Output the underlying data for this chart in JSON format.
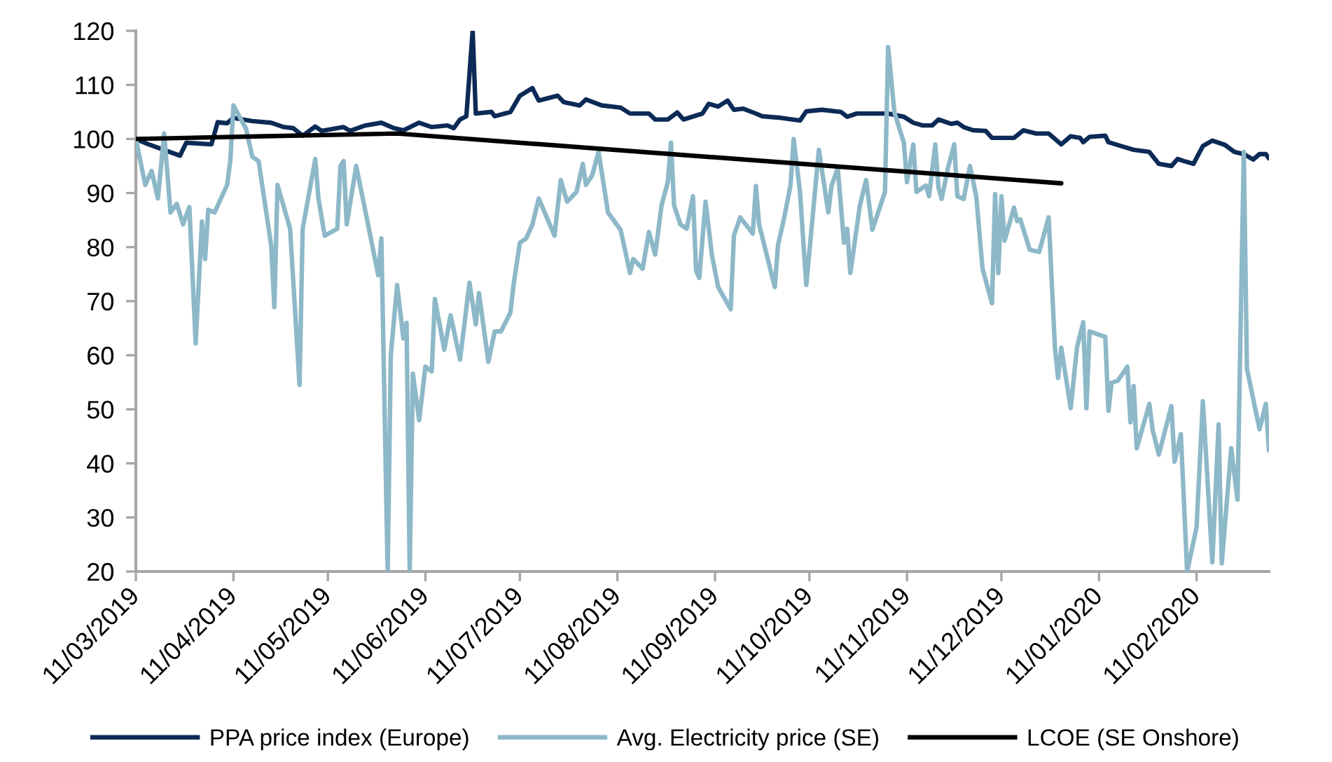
{
  "chart_data": {
    "type": "line",
    "legend": "bottom",
    "marker": "none",
    "xlim": [
      "2019-03-11",
      "2020-03-05"
    ],
    "xticks": [
      {
        "value": "2019-03-11",
        "label": "11/03/2019"
      },
      {
        "value": "2019-04-11",
        "label": "11/04/2019"
      },
      {
        "value": "2019-05-11",
        "label": "11/05/2019"
      },
      {
        "value": "2019-06-11",
        "label": "11/06/2019"
      },
      {
        "value": "2019-07-11",
        "label": "11/07/2019"
      },
      {
        "value": "2019-08-11",
        "label": "11/08/2019"
      },
      {
        "value": "2019-09-11",
        "label": "11/09/2019"
      },
      {
        "value": "2019-10-11",
        "label": "11/10/2019"
      },
      {
        "value": "2019-11-11",
        "label": "11/11/2019"
      },
      {
        "value": "2019-12-11",
        "label": "11/12/2019"
      },
      {
        "value": "2020-01-11",
        "label": "11/01/2020"
      },
      {
        "value": "2020-02-11",
        "label": "11/02/2020"
      }
    ],
    "ylim": [
      20,
      120
    ],
    "yticks": [
      20,
      30,
      40,
      50,
      60,
      70,
      80,
      90,
      100,
      110,
      120
    ],
    "series": [
      {
        "name": "PPA price index (Europe)",
        "color": "#0c2a56",
        "x": [
          "2019-03-11",
          "2019-03-15",
          "2019-03-25",
          "2019-03-27",
          "2019-04-04",
          "2019-04-06",
          "2019-04-09",
          "2019-04-11",
          "2019-04-17",
          "2019-04-23",
          "2019-04-27",
          "2019-04-30",
          "2019-05-03",
          "2019-05-07",
          "2019-05-09",
          "2019-05-16",
          "2019-05-18",
          "2019-05-23",
          "2019-05-28",
          "2019-06-01",
          "2019-06-04",
          "2019-06-09",
          "2019-06-13",
          "2019-06-18",
          "2019-06-20",
          "2019-06-22",
          "2019-06-24",
          "2019-06-26",
          "2019-06-27",
          "2019-07-02",
          "2019-07-03",
          "2019-07-08",
          "2019-07-11",
          "2019-07-15",
          "2019-07-17",
          "2019-07-23",
          "2019-07-25",
          "2019-07-30",
          "2019-08-01",
          "2019-08-06",
          "2019-08-12",
          "2019-08-15",
          "2019-08-21",
          "2019-08-23",
          "2019-08-27",
          "2019-08-30",
          "2019-09-01",
          "2019-09-07",
          "2019-09-09",
          "2019-09-12",
          "2019-09-15",
          "2019-09-17",
          "2019-09-20",
          "2019-09-24",
          "2019-09-26",
          "2019-10-02",
          "2019-10-08",
          "2019-10-10",
          "2019-10-15",
          "2019-10-21",
          "2019-10-23",
          "2019-10-26",
          "2019-11-05",
          "2019-11-10",
          "2019-11-13",
          "2019-11-16",
          "2019-11-19",
          "2019-11-21",
          "2019-11-25",
          "2019-11-27",
          "2019-11-29",
          "2019-12-02",
          "2019-12-06",
          "2019-12-08",
          "2019-12-15",
          "2019-12-18",
          "2019-12-22",
          "2019-12-26",
          "2019-12-30",
          "2020-01-02",
          "2020-01-05",
          "2020-01-06",
          "2020-01-08",
          "2020-01-13",
          "2020-01-14",
          "2020-01-18",
          "2020-01-22",
          "2020-01-27",
          "2020-01-30",
          "2020-02-03",
          "2020-02-05",
          "2020-02-07",
          "2020-02-10",
          "2020-02-13",
          "2020-02-16",
          "2020-02-20",
          "2020-02-23",
          "2020-02-26",
          "2020-02-29",
          "2020-03-02",
          "2020-03-04",
          "2020-03-05"
        ],
        "values": [
          100,
          99,
          96.9,
          99.3,
          99,
          103.1,
          102.9,
          103.9,
          103.3,
          103,
          102.2,
          102,
          100.6,
          102.3,
          101.5,
          102.2,
          101.5,
          102.5,
          103,
          102,
          101.6,
          103,
          102.2,
          102.5,
          102,
          103.6,
          104.2,
          120,
          104.7,
          105,
          104.2,
          105,
          108,
          109.4,
          107.1,
          108,
          106.8,
          106.2,
          107.3,
          106.2,
          105.8,
          104.7,
          104.7,
          103.6,
          103.6,
          104.9,
          103.6,
          104.7,
          106.5,
          106,
          107.1,
          105.4,
          105.6,
          104.7,
          104.2,
          103.9,
          103.4,
          105.1,
          105.4,
          105,
          104.1,
          104.7,
          104.7,
          104.1,
          103,
          102.5,
          102.5,
          103.6,
          102.8,
          103,
          102.2,
          101.6,
          101.5,
          100.2,
          100.2,
          101.6,
          101,
          101,
          99,
          100.5,
          100.2,
          99.4,
          100.4,
          100.6,
          99.4,
          98.7,
          98,
          97.6,
          95.4,
          95,
          96.3,
          95.9,
          95.4,
          98.7,
          99.7,
          98.9,
          97.6,
          97.2,
          96.2,
          97.2,
          97.2,
          96.4
        ]
      },
      {
        "name": "Avg. Electricity price (SE)",
        "color": "#8db8c8",
        "x": [
          "2019-03-11",
          "2019-03-14",
          "2019-03-16",
          "2019-03-18",
          "2019-03-20",
          "2019-03-22",
          "2019-03-24",
          "2019-03-26",
          "2019-03-28",
          "2019-03-30",
          "2019-04-01",
          "2019-04-02",
          "2019-04-03",
          "2019-04-05",
          "2019-04-09",
          "2019-04-10",
          "2019-04-11",
          "2019-04-15",
          "2019-04-17",
          "2019-04-19",
          "2019-04-23",
          "2019-04-24",
          "2019-04-25",
          "2019-04-29",
          "2019-05-02",
          "2019-05-03",
          "2019-05-07",
          "2019-05-08",
          "2019-05-10",
          "2019-05-14",
          "2019-05-15",
          "2019-05-16",
          "2019-05-17",
          "2019-05-20",
          "2019-05-23",
          "2019-05-27",
          "2019-05-28",
          "2019-05-30",
          "2019-05-31",
          "2019-06-02",
          "2019-06-04",
          "2019-06-05",
          "2019-06-06",
          "2019-06-07",
          "2019-06-09",
          "2019-06-11",
          "2019-06-13",
          "2019-06-14",
          "2019-06-17",
          "2019-06-19",
          "2019-06-22",
          "2019-06-25",
          "2019-06-27",
          "2019-06-28",
          "2019-07-01",
          "2019-07-03",
          "2019-07-05",
          "2019-07-08",
          "2019-07-09",
          "2019-07-11",
          "2019-07-13",
          "2019-07-15",
          "2019-07-17",
          "2019-07-22",
          "2019-07-24",
          "2019-07-26",
          "2019-07-29",
          "2019-07-31",
          "2019-08-01",
          "2019-08-03",
          "2019-08-05",
          "2019-08-07",
          "2019-08-08",
          "2019-08-12",
          "2019-08-15",
          "2019-08-16",
          "2019-08-19",
          "2019-08-21",
          "2019-08-23",
          "2019-08-25",
          "2019-08-27",
          "2019-08-28",
          "2019-08-29",
          "2019-08-31",
          "2019-09-02",
          "2019-09-04",
          "2019-09-05",
          "2019-09-06",
          "2019-09-08",
          "2019-09-10",
          "2019-09-12",
          "2019-09-16",
          "2019-09-17",
          "2019-09-19",
          "2019-09-23",
          "2019-09-24",
          "2019-09-25",
          "2019-09-30",
          "2019-10-01",
          "2019-10-03",
          "2019-10-05",
          "2019-10-06",
          "2019-10-08",
          "2019-10-10",
          "2019-10-12",
          "2019-10-14",
          "2019-10-17",
          "2019-10-18",
          "2019-10-20",
          "2019-10-22",
          "2019-10-23",
          "2019-10-24",
          "2019-10-27",
          "2019-10-29",
          "2019-10-31",
          "2019-11-04",
          "2019-11-05",
          "2019-11-07",
          "2019-11-10",
          "2019-11-11",
          "2019-11-13",
          "2019-11-14",
          "2019-11-17",
          "2019-11-18",
          "2019-11-20",
          "2019-11-21",
          "2019-11-22",
          "2019-11-24",
          "2019-11-26",
          "2019-11-27",
          "2019-11-29",
          "2019-12-01",
          "2019-12-03",
          "2019-12-05",
          "2019-12-08",
          "2019-12-09",
          "2019-12-10",
          "2019-12-11",
          "2019-12-12",
          "2019-12-15",
          "2019-12-16",
          "2019-12-17",
          "2019-12-20",
          "2019-12-23",
          "2019-12-26",
          "2019-12-28",
          "2019-12-29",
          "2019-12-30",
          "2020-01-02",
          "2020-01-04",
          "2020-01-06",
          "2020-01-07",
          "2020-01-08",
          "2020-01-13",
          "2020-01-14",
          "2020-01-15",
          "2020-01-17",
          "2020-01-20",
          "2020-01-21",
          "2020-01-22",
          "2020-01-23",
          "2020-01-27",
          "2020-01-28",
          "2020-01-30",
          "2020-02-03",
          "2020-02-04",
          "2020-02-06",
          "2020-02-08",
          "2020-02-11",
          "2020-02-13",
          "2020-02-16",
          "2020-02-18",
          "2020-02-19",
          "2020-02-22",
          "2020-02-24",
          "2020-02-26",
          "2020-02-27",
          "2020-03-02",
          "2020-03-04",
          "2020-03-05"
        ],
        "values": [
          100,
          91.5,
          94.1,
          89,
          101,
          86.4,
          88,
          84.2,
          87.4,
          62.2,
          84.7,
          77.8,
          86.9,
          86.4,
          91.5,
          95.9,
          106.2,
          101.9,
          96.7,
          95.9,
          80.3,
          68.9,
          91.5,
          83.4,
          54.5,
          83.4,
          96.3,
          89,
          82.1,
          83.4,
          95,
          95.9,
          84.2,
          95,
          86.4,
          74.8,
          81.6,
          20,
          60,
          73,
          63.1,
          66,
          20,
          56.6,
          48,
          57.9,
          57,
          70.4,
          61,
          67.4,
          59.2,
          73.4,
          65.7,
          71.5,
          58.8,
          64.4,
          64.4,
          67.9,
          73,
          80.8,
          81.6,
          84.2,
          89,
          82.1,
          92.4,
          88.4,
          90.2,
          95.4,
          91.5,
          93.3,
          97.6,
          90.2,
          86.4,
          83.2,
          75.2,
          77.8,
          76,
          82.8,
          78.6,
          87.7,
          92,
          99.3,
          87.7,
          84.2,
          83.4,
          89.4,
          75.6,
          74.3,
          88.4,
          78.6,
          72.6,
          68.5,
          82.1,
          85.5,
          82.5,
          91.3,
          84.2,
          72.6,
          80.3,
          85.5,
          91.5,
          100,
          90.2,
          73,
          85.5,
          98,
          86.4,
          91.3,
          94.6,
          80.8,
          83.4,
          75.2,
          87.6,
          92.4,
          83.2,
          90.2,
          117,
          104.9,
          99.3,
          92,
          99,
          90.2,
          91.4,
          89.4,
          99,
          91,
          88.9,
          94.6,
          99,
          89.4,
          88.9,
          95,
          89.4,
          76,
          69.6,
          89.8,
          75.2,
          89.4,
          81.2,
          87.3,
          84.8,
          85.1,
          79.5,
          79.1,
          85.5,
          61.4,
          55.8,
          61.4,
          50.2,
          61.4,
          66.1,
          50.2,
          64.4,
          63.4,
          49.7,
          54.9,
          55.3,
          57.9,
          47.6,
          54.3,
          42.8,
          51,
          46.3,
          41.6,
          50.6,
          40.3,
          45.4,
          20,
          28.2,
          51.5,
          21.7,
          47.2,
          21.5,
          42.8,
          33.3,
          97.6,
          57.5,
          46.3,
          51,
          42.4
        ]
      },
      {
        "name": "LCOE (SE Onshore)",
        "color": "#000000",
        "x": [
          "2019-03-11",
          "2019-04-21",
          "2019-06-02",
          "2019-12-30"
        ],
        "values": [
          100,
          100.5,
          101,
          91.8
        ]
      }
    ]
  }
}
